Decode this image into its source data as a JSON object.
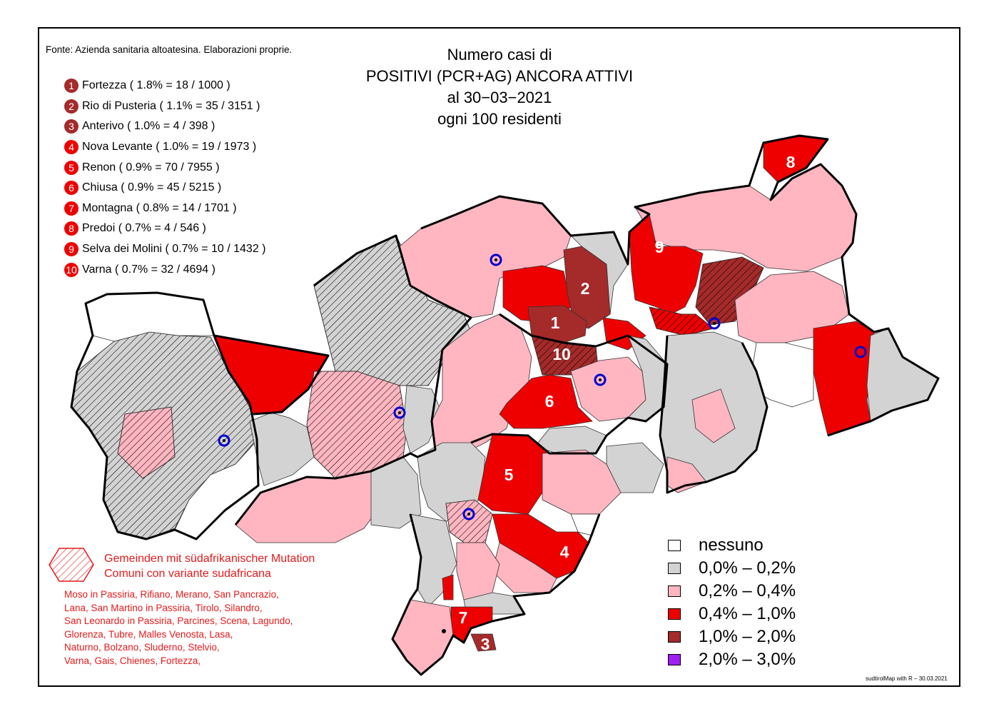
{
  "source": "Fonte: Azienda sanitaria altoatesina. Elaborazioni proprie.",
  "title": [
    "Numero casi di",
    "POSITIVI (PCR+AG) ANCORA ATTIVI",
    "al 30−03−2021",
    "ogni 100 residenti"
  ],
  "ranking": [
    {
      "rank": "1",
      "name": "Fortezza",
      "detail": "( 1.8% = 18 / 1000 )",
      "color": "#a52a2a"
    },
    {
      "rank": "2",
      "name": "Rio di Pusteria",
      "detail": "( 1.1% = 35 / 3151 )",
      "color": "#a52a2a"
    },
    {
      "rank": "3",
      "name": "Anterivo",
      "detail": "( 1.0% = 4 / 398 )",
      "color": "#a52a2a"
    },
    {
      "rank": "4",
      "name": "Nova Levante",
      "detail": "( 1.0% = 19 / 1973 )",
      "color": "#ee0000"
    },
    {
      "rank": "5",
      "name": "Renon",
      "detail": "( 0.9% = 70 / 7955 )",
      "color": "#ee0000"
    },
    {
      "rank": "6",
      "name": "Chiusa",
      "detail": "( 0.9% = 45 / 5215 )",
      "color": "#ee0000"
    },
    {
      "rank": "7",
      "name": "Montagna",
      "detail": "( 0.8% = 14 / 1701 )",
      "color": "#ee0000"
    },
    {
      "rank": "8",
      "name": "Predoi",
      "detail": "( 0.7% = 4 / 546 )",
      "color": "#ee0000"
    },
    {
      "rank": "9",
      "name": "Selva dei Molini",
      "detail": "( 0.7% = 10 / 1432 )",
      "color": "#ee0000"
    },
    {
      "rank": "10",
      "name": "Varna",
      "detail": "( 0.7% = 32 / 4694 )",
      "color": "#ee0000"
    }
  ],
  "variant": {
    "label_de": "Gemeinden mit südafrikanischer Mutation",
    "label_it": "Comuni con variante sudafricana",
    "lines": [
      "Moso in Passiria,  Rifiano,  Merano,  San Pancrazio,",
      "Lana,  San Martino in Passiria,  Tirolo,  Silandro,",
      "San Leonardo in Passiria,  Parcines,  Scena,  Lagundo,",
      "Glorenza,  Tubre,  Malles Venosta,  Lasa,",
      "Naturno,  Bolzano,  Sluderno,  Stelvio,",
      "Varna,  Gais,  Chienes,  Fortezza,"
    ],
    "color": "#e41a1c"
  },
  "legend": [
    {
      "label": "nessuno",
      "color": "#ffffff"
    },
    {
      "label": "0,0% – 0,2%",
      "color": "#d3d3d3"
    },
    {
      "label": "0,2% – 0,4%",
      "color": "#ffb6c1"
    },
    {
      "label": "0,4% – 1,0%",
      "color": "#ee0000"
    },
    {
      "label": "1,0% – 2,0%",
      "color": "#a52a2a"
    },
    {
      "label": "2,0% – 3,0%",
      "color": "#a020f0"
    }
  ],
  "credit": "sudtirolMap with R – 30.03.2021",
  "colors": {
    "red": "#ee0000",
    "dark_red": "#a52a2a",
    "pink": "#ffb6c1",
    "gray": "#d3d3d3",
    "marker": "#0000cc"
  }
}
